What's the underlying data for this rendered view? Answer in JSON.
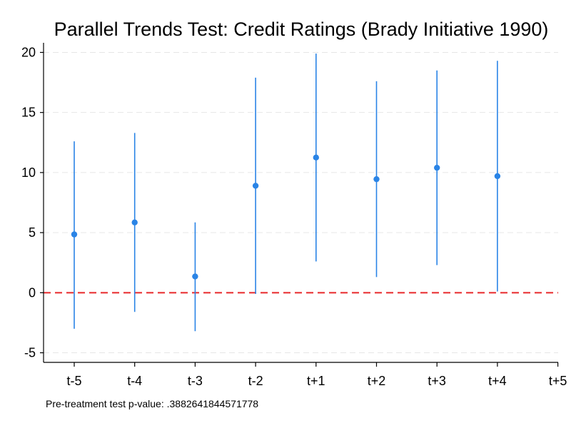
{
  "chart_data": {
    "type": "scatter",
    "title": "Parallel Trends Test: Credit Ratings (Brady Initiative 1990)",
    "xlabel": "",
    "ylabel": "",
    "categories": [
      "t-5",
      "t-4",
      "t-3",
      "t-2",
      "t+1",
      "t+2",
      "t+3",
      "t+4",
      "t+5"
    ],
    "series": [
      {
        "values": [
          4.85,
          5.85,
          1.35,
          8.9,
          11.25,
          9.45,
          10.4,
          9.7,
          null
        ],
        "ci_low": [
          -3.0,
          -1.6,
          -3.2,
          -0.1,
          2.6,
          1.3,
          2.3,
          0.1,
          null
        ],
        "ci_high": [
          12.6,
          13.3,
          5.85,
          17.9,
          19.9,
          17.6,
          18.5,
          19.3,
          null
        ]
      }
    ],
    "yticks": [
      -5,
      0,
      5,
      10,
      15,
      20
    ],
    "ylim": [
      -5.8,
      20.8
    ],
    "grid": true,
    "reference_line": 0,
    "note": "Pre-treatment test p-value: .3882641844571778",
    "colors": {
      "points": "#2a84e6",
      "ci_lines": "#2a84e6",
      "reference_line": "#e8272a",
      "grid": "#e6e6e6"
    }
  }
}
